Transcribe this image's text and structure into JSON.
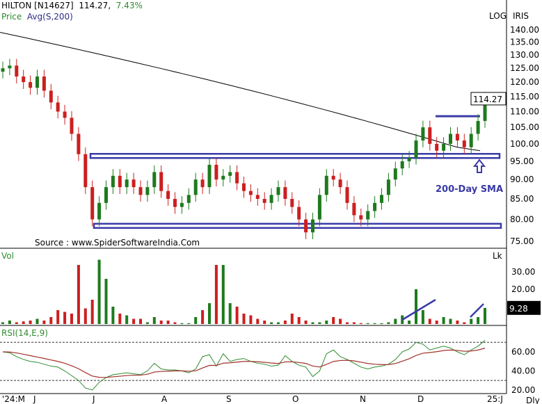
{
  "header": {
    "symbol": "HILTON [N14627]",
    "price": "114.27,",
    "change": "7.43%",
    "indicator_prefix": "Price",
    "indicator": "Avg(S,200)",
    "scale_mode": "LOG",
    "brand": "IRIS"
  },
  "source": "Source : www.SpiderSoftwareIndia.Com",
  "annotation": "200-Day SMA",
  "colors": {
    "up": "#1e7a1e",
    "down": "#cc1f1f",
    "band": "#3a3aa8",
    "sma": "#000000",
    "rsi": "#2e8b2e",
    "signal": "#a0302a"
  },
  "chart_data": [
    {
      "type": "candlestick",
      "scale": "log",
      "ylim": [
        73,
        145
      ],
      "yticks": [
        "140.00",
        "135.00",
        "130.00",
        "125.00",
        "120.00",
        "115.00",
        "110.00",
        "105.00",
        "100.00",
        "95.00",
        "90.00",
        "85.00",
        "80.00",
        "75.00"
      ],
      "last_price_label": "114.27",
      "closes": [
        125,
        126,
        122,
        120,
        118,
        122,
        117,
        113,
        110,
        108,
        103,
        97,
        88,
        80,
        84,
        88,
        91,
        88,
        90,
        88,
        86,
        88,
        92,
        87,
        85,
        83,
        84,
        86,
        90,
        88,
        94,
        90,
        91,
        92,
        89,
        87,
        86,
        85,
        84,
        86,
        88,
        85,
        83,
        80,
        77,
        80,
        86,
        91,
        90,
        88,
        84,
        81,
        80,
        82,
        84,
        86,
        90,
        93,
        95,
        96,
        101,
        105,
        100,
        98,
        100,
        103,
        101,
        99,
        103,
        107,
        114.27
      ],
      "sma_200": [
        139,
        137,
        135,
        133,
        131,
        129,
        127,
        125,
        123,
        121,
        119,
        117,
        115,
        113,
        111,
        109,
        107,
        105,
        103,
        101,
        99,
        98
      ],
      "levels": [
        {
          "name": "resistance-band",
          "value": 96.5
        },
        {
          "name": "support-band",
          "value": 78.5
        },
        {
          "name": "breakout-level",
          "value": 108.5
        }
      ]
    },
    {
      "type": "bar",
      "title": "Vol",
      "unit": "Lk",
      "ylim": [
        0,
        40
      ],
      "yticks": [
        "30.00",
        "20.00"
      ],
      "last_value_label": "9.28",
      "values": [
        1,
        2,
        1,
        1.5,
        2,
        3,
        2,
        4,
        8,
        7,
        6,
        34,
        9,
        14,
        37,
        26,
        10,
        6,
        5,
        3,
        3,
        1,
        4,
        2,
        2,
        1,
        0.5,
        0.5,
        4,
        8,
        12,
        34,
        34,
        12,
        10,
        6,
        5,
        3,
        2,
        1,
        1,
        2,
        6,
        4,
        2,
        1,
        1,
        2,
        4,
        3,
        1,
        1,
        0.5,
        0.5,
        0.5,
        0.5,
        1,
        3,
        5,
        2,
        20,
        8,
        3,
        2,
        4,
        3,
        2,
        1,
        3,
        4,
        9.28
      ]
    },
    {
      "type": "line",
      "title": "RSI(14,E,9)",
      "ylim": [
        15,
        80
      ],
      "yticks": [
        "60.00",
        "40.00",
        "20.00"
      ],
      "reference_lines": [
        70,
        30
      ],
      "rsi": [
        60,
        59,
        55,
        52,
        50,
        49,
        47,
        45,
        44,
        40,
        35,
        30,
        22,
        20,
        28,
        33,
        36,
        37,
        38,
        37,
        36,
        40,
        48,
        42,
        41,
        41,
        40,
        38,
        42,
        55,
        57,
        45,
        58,
        50,
        52,
        53,
        50,
        48,
        47,
        45,
        46,
        56,
        50,
        46,
        44,
        34,
        40,
        58,
        62,
        55,
        52,
        48,
        44,
        42,
        44,
        45,
        47,
        52,
        60,
        63,
        70,
        68,
        62,
        64,
        66,
        64,
        60,
        57,
        62,
        66,
        72
      ]
    }
  ],
  "x_axis": {
    "labels": [
      "'24:M",
      "J",
      "J",
      "A",
      "S",
      "O",
      "N",
      "D",
      "25:J"
    ],
    "period": "Dly"
  }
}
